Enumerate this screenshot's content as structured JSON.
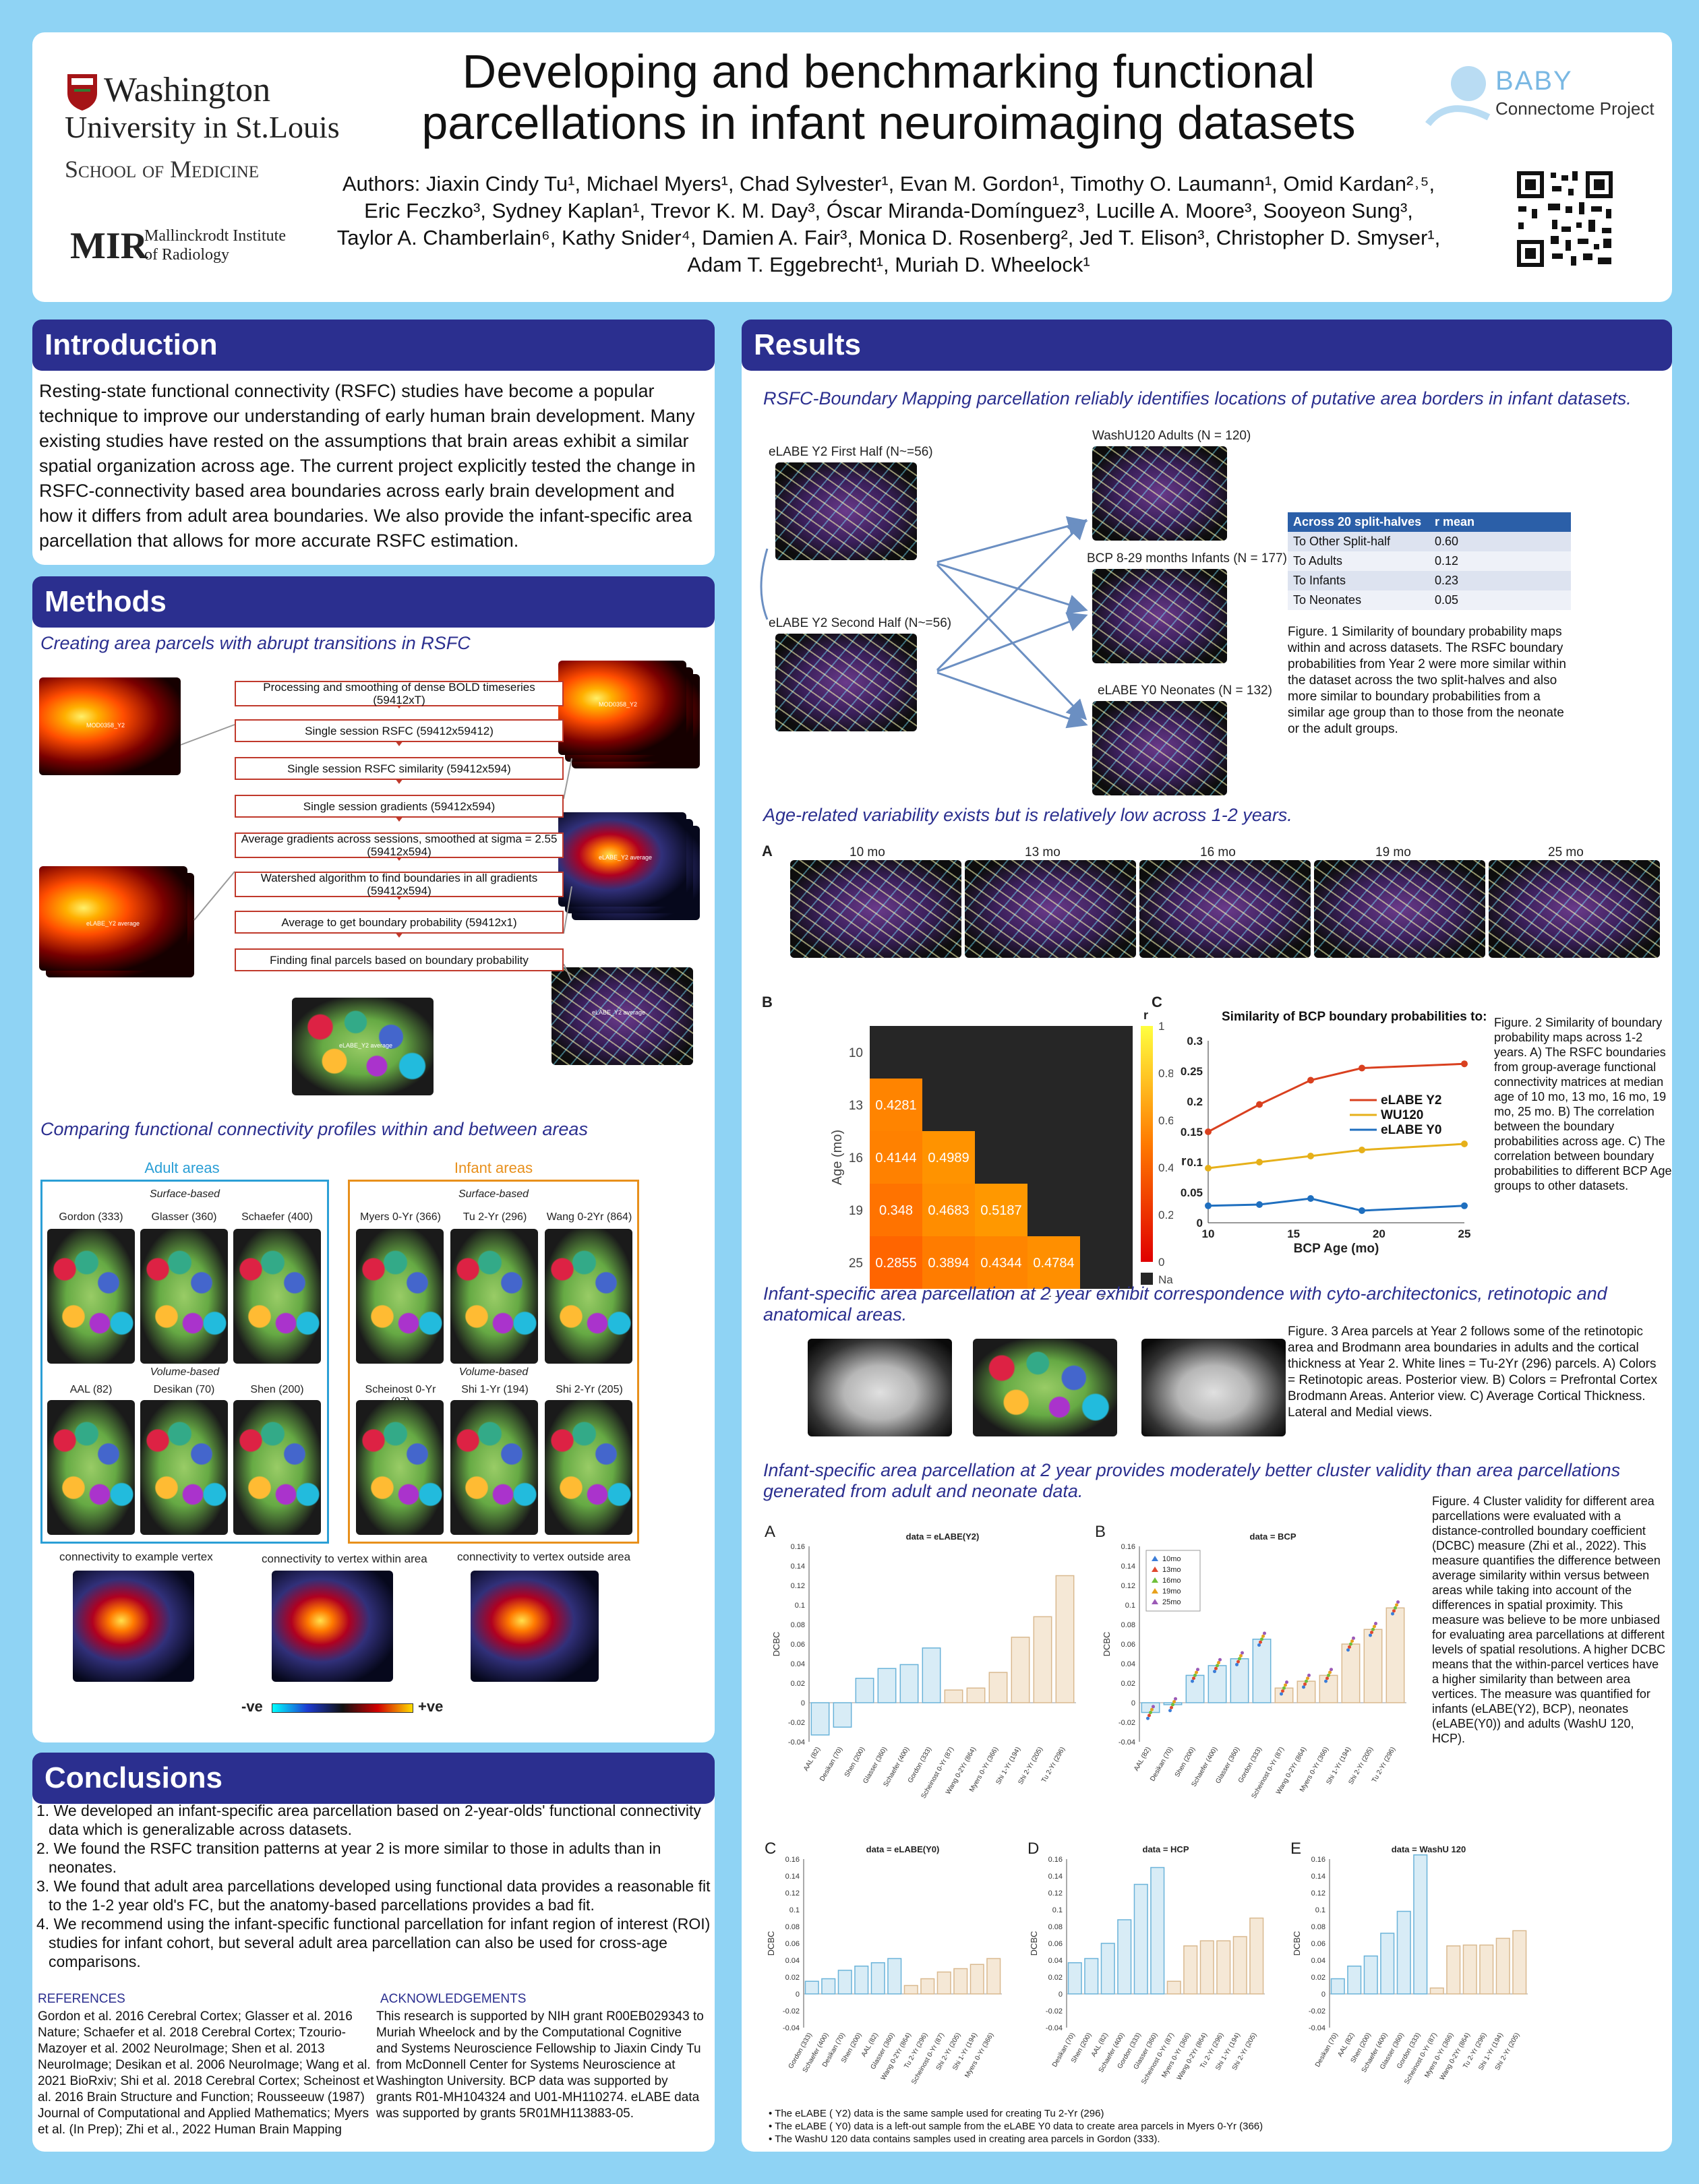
{
  "header": {
    "title_line1": "Developing and benchmarking functional",
    "title_line2": "parcellations in infant neuroimaging datasets",
    "authors_line1": "Authors: Jiaxin Cindy Tu¹, Michael Myers¹, Chad Sylvester¹, Evan M. Gordon¹, Timothy O. Laumann¹, Omid Kardan²˒⁵,",
    "authors_line2": "Eric Feczko³, Sydney Kaplan¹, Trevor K. M. Day³, Óscar Miranda-Domínguez³, Lucille A. Moore³, Sooyeon Sung³,",
    "authors_line3": "Taylor A. Chamberlain⁶, Kathy Snider⁴, Damien A. Fair³, Monica D. Rosenberg², Jed T. Elison³, Christopher D. Smyser¹,",
    "authors_line4": "Adam T. Eggebrecht¹, Muriah D. Wheelock¹",
    "logo_wu_1": "Washington",
    "logo_wu_2": "University in St.Louis",
    "logo_wu_3": "School of Medicine",
    "logo_mir_big": "MIR",
    "logo_mir_1": "Mallinckrodt Institute",
    "logo_mir_2": "of Radiology",
    "logo_baby_1": "BABY",
    "logo_baby_2": "Connectome Project"
  },
  "intro": {
    "heading": "Introduction",
    "text": "Resting-state functional connectivity (RSFC) studies have become a popular technique to improve our understanding of early human brain development. Many existing studies have rested on the assumptions that brain areas exhibit a similar spatial organization across age. The current project explicitly tested the change in RSFC-connectivity based area boundaries across early brain development and how it differs from adult area boundaries. We also provide the infant-specific area parcellation that allows for more accurate RSFC estimation."
  },
  "methods": {
    "heading": "Methods",
    "sub1": "Creating area parcels with abrupt transitions in RSFC",
    "flow": [
      "Processing and smoothing of dense BOLD timeseries (59412xT)",
      "Single session RSFC (59412x59412)",
      "Single session RSFC similarity (59412x594)",
      "Single session gradients (59412x594)",
      "Average gradients across sessions, smoothed at sigma = 2.55 (59412x594)",
      "Watershed algorithm to find boundaries in all gradients (59412x594)",
      "Average to get boundary probability (59412x1)",
      "Finding final parcels based on boundary probability"
    ],
    "brain_labels": [
      "MOD0358_Y2",
      "eLABE_Y2 average",
      "MOD0358_Y2",
      "eLABE_Y2 average",
      "eLABE_Y2 average",
      "eLABE_Y2 average"
    ],
    "sub2": "Comparing functional connectivity profiles within and between areas",
    "adult_title": "Adult areas",
    "infant_title": "Infant areas",
    "surface": "Surface-based",
    "volume": "Volume-based",
    "adult_surface": [
      "Gordon (333)",
      "Glasser (360)",
      "Schaefer (400)"
    ],
    "adult_volume": [
      "AAL (82)",
      "Desikan (70)",
      "Shen (200)"
    ],
    "infant_surface": [
      "Myers 0-Yr (366)",
      "Tu 2-Yr (296)",
      "Wang 0-2Yr (864)"
    ],
    "infant_volume": [
      "Scheinost 0-Yr (87)",
      "Shi 1-Yr (194)",
      "Shi 2-Yr (205)"
    ],
    "conn_labels": [
      "connectivity to example vertex",
      "connectivity to vertex within area",
      "connectivity to vertex outside area"
    ],
    "cbar_neg": "-ve",
    "cbar_pos": "+ve"
  },
  "conclusions": {
    "heading": "Conclusions",
    "items": [
      "1.   We developed an infant-specific area parcellation based on 2-year-olds' functional connectivity data which is generalizable across datasets.",
      "2.   We found the RSFC transition patterns at year 2 is more similar to those in adults than in neonates.",
      "3.   We found that adult area parcellations developed using functional data provides a reasonable fit to the 1-2 year old's FC, but the anatomy-based parcellations provides a bad fit.",
      "4.   We recommend using the infant-specific functional parcellation for infant region of interest (ROI) studies for infant cohort, but several adult area parcellation can also be used for cross-age comparisons."
    ]
  },
  "refs": {
    "heading": "REFERENCES",
    "text": "Gordon et al. 2016 Cerebral Cortex; Glasser et al. 2016 Nature; Schaefer et al. 2018 Cerebral Cortex; Tzourio-Mazoyer et al. 2002 NeuroImage; Shen et al. 2013 NeuroImage; Desikan et al. 2006 NeuroImage; Wang et al. 2021 BioRxiv; Shi et al. 2018 Cerebral Cortex; Scheinost et al. 2016 Brain Structure and Function; Rousseeuw (1987) Journal of Computational and Applied Mathematics; Myers et al. (In Prep); Zhi et al., 2022 Human Brain Mapping",
    "ack_heading": "ACKNOWLEDGEMENTS",
    "ack_text": "This research is supported by NIH grant R00EB029343 to Muriah Wheelock and by the Computational Cognitive and Systems Neuroscience Fellowship to Jiaxin Cindy Tu from McDonnell Center for Systems Neuroscience at Washington University. BCP data was supported by grants R01-MH104324 and U01-MH110274. eLABE data was supported by grants 5R01MH113883-05."
  },
  "results": {
    "heading": "Results",
    "sub1": "RSFC-Boundary Mapping parcellation reliably identifies locations of putative area borders in infant datasets.",
    "fig1_labels": [
      "eLABE Y2 First Half (N~=56)",
      "eLABE Y2 Second Half (N~=56)",
      "WashU120 Adults (N = 120)",
      "BCP 8-29 months Infants (N = 177)",
      "eLABE Y0 Neonates (N = 132)"
    ],
    "table_header": [
      "Across 20 split-halves",
      "r mean"
    ],
    "table_rows": [
      [
        "To Other Split-half",
        "0.60"
      ],
      [
        "To Adults",
        "0.12"
      ],
      [
        "To Infants",
        "0.23"
      ],
      [
        "To Neonates",
        "0.05"
      ]
    ],
    "fig1_caption": "Figure. 1 Similarity of boundary probability maps within and across datasets. The RSFC boundary probabilities from Year 2 were more similar within the dataset across the two split-halves and also more similar to boundary probabilities from a similar age group than to those from the neonate or the adult groups.",
    "sub2": "Age-related variability exists but is relatively low across 1-2 years.",
    "panelA": "A",
    "ages": [
      "10 mo",
      "13 mo",
      "16 mo",
      "19 mo",
      "25 mo"
    ],
    "panelB": "B",
    "panelC": "C",
    "fig2_caption": "Figure. 2 Similarity of boundary probability maps across 1-2 years. A) The RSFC boundaries from group-average functional connectivity matrices at median age of 10 mo, 13 mo, 16 mo, 19 mo, 25 mo. B) The correlation between the boundary probabilities across age. C) The correlation between boundary probabilities to different BCP Age groups to other datasets.",
    "sub3": "Infant-specific area parcellation at 2 year exhibit correspondence with cyto-architectonics, retinotopic and anatomical areas.",
    "fig3_caption": "Figure. 3 Area parcels at Year 2 follows some of the retinotopic area and Brodmann area boundaries in adults and the cortical thickness at Year 2. White lines = Tu-2Yr (296) parcels. A) Colors = Retinotopic areas. Posterior view. B) Colors = Prefrontal Cortex Brodmann Areas. Anterior view. C) Average Cortical Thickness. Lateral and Medial views.",
    "sub4": "Infant-specific area parcellation at 2 year provides moderately better cluster validity than area parcellations generated from adult and neonate data.",
    "fig4_caption": "Figure. 4 Cluster validity for different area parcellations were evaluated with a distance-controlled boundary coefficient (DCBC) measure (Zhi et al., 2022). This measure quantifies the difference between average similarity within versus between areas while taking into account of the differences in spatial proximity. This measure was believe to be more unbiased for evaluating area parcellations at different levels of spatial resolutions. A higher DCBC means that the within-parcel vertices have a higher similarity than between area vertices. The measure was quantified for infants (eLABE(Y2), BCP), neonates (eLABE(Y0)) and adults (WashU 120, HCP).",
    "notes": [
      "The eLABE ( Y2) data is the same sample used for creating Tu 2-Yr (296)",
      "The eLABE ( Y0) data is a left-out sample from the eLABE Y0 data to create area parcels in Myers 0-Yr (366)",
      "The WashU 120 data contains samples used in creating area parcels in Gordon (333)."
    ]
  },
  "chart_data": [
    {
      "type": "heatmap",
      "id": "fig2B",
      "xlabel": "Age (mo)",
      "ylabel": "Age (mo)",
      "x": [
        10,
        13,
        16,
        19,
        25
      ],
      "y": [
        10,
        13,
        16,
        19,
        25
      ],
      "cells": [
        [
          13,
          10,
          0.4281
        ],
        [
          16,
          10,
          0.4144
        ],
        [
          16,
          13,
          0.4989
        ],
        [
          19,
          10,
          0.348
        ],
        [
          19,
          13,
          0.4683
        ],
        [
          19,
          16,
          0.5187
        ],
        [
          25,
          10,
          0.2855
        ],
        [
          25,
          13,
          0.3894
        ],
        [
          25,
          16,
          0.4344
        ],
        [
          25,
          19,
          0.4784
        ]
      ],
      "colorbar_label": "r",
      "colorbar_ticks": [
        0,
        0.2,
        0.4,
        0.6,
        0.8,
        1
      ],
      "nan_label": "NaN"
    },
    {
      "type": "line",
      "id": "fig2C",
      "title": "Similarity of BCP boundary probabilities to:",
      "xlabel": "BCP Age (mo)",
      "ylabel": "r",
      "x": [
        10,
        13,
        16,
        19,
        25
      ],
      "xticks": [
        10,
        15,
        20,
        25
      ],
      "ylim": [
        0,
        0.3
      ],
      "yticks": [
        0,
        0.05,
        0.1,
        0.15,
        0.2,
        0.25,
        0.3
      ],
      "series": [
        {
          "name": "eLABE Y2",
          "color": "#d9401f",
          "values": [
            0.15,
            0.195,
            0.235,
            0.255,
            0.262
          ]
        },
        {
          "name": "WU120",
          "color": "#e6b01a",
          "values": [
            0.09,
            0.1,
            0.11,
            0.12,
            0.13
          ]
        },
        {
          "name": "eLABE Y0",
          "color": "#1f6fbf",
          "values": [
            0.028,
            0.03,
            0.04,
            0.02,
            0.028
          ]
        }
      ]
    },
    {
      "type": "bar",
      "id": "fig4A",
      "panel": "A",
      "title": "data = eLABE(Y2)",
      "ylabel": "DCBC",
      "ylim": [
        -0.04,
        0.16
      ],
      "yticks": [
        -0.04,
        -0.02,
        0,
        0.02,
        0.04,
        0.06,
        0.08,
        0.1,
        0.12,
        0.14,
        0.16
      ],
      "categories": [
        "AAL (82)",
        "Desikan (70)",
        "Shen (200)",
        "Glasser (360)",
        "Schaefer (400)",
        "Gordon (333)",
        "Scheinost 0-Yr (87)",
        "Wang 0-2Yr (864)",
        "Myers 0-Yr (366)",
        "Shi 1-Yr (194)",
        "Shi 2-Yr (205)",
        "Tu 2-Yr (296)"
      ],
      "values": [
        -0.033,
        -0.025,
        0.025,
        0.035,
        0.039,
        0.056,
        0.013,
        0.015,
        0.031,
        0.067,
        0.088,
        0.13
      ]
    },
    {
      "type": "bar",
      "id": "fig4B",
      "panel": "B",
      "title": "data = BCP",
      "ylabel": "DCBC",
      "ylim": [
        -0.04,
        0.16
      ],
      "yticks": [
        -0.04,
        -0.02,
        0,
        0.02,
        0.04,
        0.06,
        0.08,
        0.1,
        0.12,
        0.14,
        0.16
      ],
      "legend": [
        "10mo",
        "13mo",
        "16mo",
        "19mo",
        "25mo"
      ],
      "categories": [
        "AAL (82)",
        "Desikan (70)",
        "Shen (200)",
        "Schaefer (400)",
        "Glasser (360)",
        "Gordon (333)",
        "Scheinost 0-Yr (87)",
        "Wang 0-2Yr (864)",
        "Myers 0-Yr (366)",
        "Shi 1-Yr (194)",
        "Shi 2-Yr (205)",
        "Tu 2-Yr (296)"
      ],
      "values": [
        -0.01,
        -0.002,
        0.028,
        0.038,
        0.045,
        0.065,
        0.015,
        0.022,
        0.028,
        0.06,
        0.075,
        0.097
      ]
    },
    {
      "type": "bar",
      "id": "fig4C",
      "panel": "C",
      "title": "data = eLABE(Y0)",
      "ylabel": "DCBC",
      "ylim": [
        -0.04,
        0.16
      ],
      "yticks": [
        -0.04,
        -0.02,
        0,
        0.02,
        0.04,
        0.06,
        0.08,
        0.1,
        0.12,
        0.14,
        0.16
      ],
      "categories": [
        "Gordon (333)",
        "Schaefer (400)",
        "Desikan (70)",
        "Shen (200)",
        "AAL (82)",
        "Glasser (360)",
        "Wang 0-2Yr (864)",
        "Tu 2-Yr (296)",
        "Scheinost 0-Yr (87)",
        "Shi 2-Yr (205)",
        "Shi 1-Yr (194)",
        "Myers 0-Yr (366)"
      ],
      "values": [
        0.015,
        0.018,
        0.028,
        0.033,
        0.037,
        0.042,
        0.01,
        0.018,
        0.026,
        0.03,
        0.035,
        0.042
      ]
    },
    {
      "type": "bar",
      "id": "fig4D",
      "panel": "D",
      "title": "data = HCP",
      "ylabel": "DCBC",
      "ylim": [
        -0.04,
        0.16
      ],
      "yticks": [
        -0.04,
        -0.02,
        0,
        0.02,
        0.04,
        0.06,
        0.08,
        0.1,
        0.12,
        0.14,
        0.16
      ],
      "categories": [
        "Desikan (70)",
        "Shen (200)",
        "AAL (82)",
        "Schaefer (400)",
        "Gordon (333)",
        "Glasser (360)",
        "Scheinost 0-Yr (87)",
        "Myers 0-Yr (366)",
        "Wang 0-2Yr (864)",
        "Tu 2-Yr (296)",
        "Shi 1-Yr (194)",
        "Shi 2-Yr (205)"
      ],
      "values": [
        0.037,
        0.042,
        0.06,
        0.088,
        0.13,
        0.15,
        0.015,
        0.057,
        0.063,
        0.063,
        0.068,
        0.09
      ]
    },
    {
      "type": "bar",
      "id": "fig4E",
      "panel": "E",
      "title": "data = WashU 120",
      "ylabel": "DCBC",
      "ylim": [
        -0.04,
        0.16
      ],
      "yticks": [
        -0.04,
        -0.02,
        0,
        0.02,
        0.04,
        0.06,
        0.08,
        0.1,
        0.12,
        0.14,
        0.16
      ],
      "categories": [
        "Desikan (70)",
        "AAL (82)",
        "Shen (200)",
        "Schaefer (400)",
        "Glasser (360)",
        "Gordon (333)",
        "Scheinost 0-Yr (87)",
        "Myers 0-Yr (366)",
        "Wang 0-2Yr (864)",
        "Tu 2-Yr (296)",
        "Shi 1-Yr (194)",
        "Shi 2-Yr (205)"
      ],
      "values": [
        0.018,
        0.033,
        0.045,
        0.072,
        0.098,
        0.165,
        0.007,
        0.057,
        0.058,
        0.058,
        0.066,
        0.075
      ]
    }
  ],
  "colors": {
    "accent": "#2b2f8f",
    "adult": "#2b9fd6",
    "infant": "#e8901c",
    "arrow": "#6b8fc2"
  }
}
